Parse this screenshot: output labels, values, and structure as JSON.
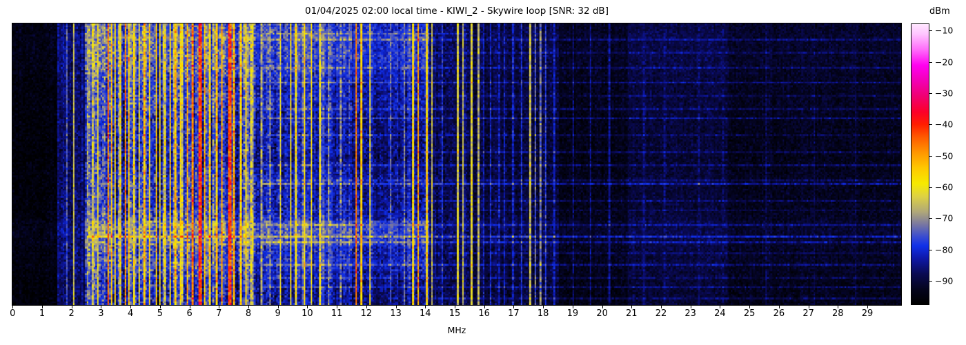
{
  "chart_data": {
    "type": "heatmap",
    "subtype": "hf-spectrogram-waterfall",
    "title": "01/04/2025 02:00 local time - KIWI_2 - Skywire loop [SNR: 32 dB]",
    "xlabel": "MHz",
    "xlim": [
      0,
      30.2
    ],
    "xticks": [
      0,
      1,
      2,
      3,
      4,
      5,
      6,
      7,
      8,
      9,
      10,
      11,
      12,
      13,
      14,
      15,
      16,
      17,
      18,
      19,
      20,
      21,
      22,
      23,
      24,
      25,
      26,
      27,
      28,
      29
    ],
    "ylabel": "",
    "time_axis": "vertical, unlabeled (24 h waterfall, newest at bottom)",
    "grid": false,
    "colorbar": {
      "label": "dBm",
      "ticks": [
        -10,
        -20,
        -30,
        -40,
        -50,
        -60,
        -70,
        -80,
        -90
      ],
      "vmin": -97.75,
      "vmax": -7.75,
      "position": "right",
      "colormap": [
        [
          -97.5,
          "#000000"
        ],
        [
          -93,
          "#04041c"
        ],
        [
          -88,
          "#0a0a52"
        ],
        [
          -83,
          "#0e18a8"
        ],
        [
          -79,
          "#1030e8"
        ],
        [
          -76,
          "#3a4cd0"
        ],
        [
          -72,
          "#7a78a0"
        ],
        [
          -68,
          "#b0a878"
        ],
        [
          -63,
          "#ded242"
        ],
        [
          -59,
          "#f6ea00"
        ],
        [
          -54,
          "#ffc800"
        ],
        [
          -49,
          "#ff9600"
        ],
        [
          -44,
          "#ff5a00"
        ],
        [
          -40,
          "#ff1e00"
        ],
        [
          -36,
          "#fc0028"
        ],
        [
          -31,
          "#f00070"
        ],
        [
          -26,
          "#f200b4"
        ],
        [
          -21,
          "#ff00f0"
        ],
        [
          -16,
          "#ff6cfa"
        ],
        [
          -11,
          "#ffc4ff"
        ],
        [
          -7.8,
          "#ffe6ff"
        ]
      ]
    },
    "grid_model": {
      "cols": 516,
      "rows": 150,
      "seed": 20250104
    },
    "noise_floor_segments": [
      [
        0.0,
        1.55,
        -95,
        2.5,
        1
      ],
      [
        1.55,
        2.45,
        -87,
        3.5,
        3
      ],
      [
        2.45,
        8.25,
        -76,
        6,
        10
      ],
      [
        8.25,
        9.35,
        -80,
        5,
        6
      ],
      [
        9.35,
        12.25,
        -80,
        4.5,
        5
      ],
      [
        12.25,
        13.4,
        -83,
        4,
        3
      ],
      [
        13.4,
        14.15,
        -80,
        4.5,
        5
      ],
      [
        14.15,
        15.5,
        -88,
        3.5,
        2
      ],
      [
        15.5,
        18.55,
        -90,
        3,
        2
      ],
      [
        18.55,
        20.9,
        -93,
        2.5,
        1
      ],
      [
        20.9,
        24.3,
        -90,
        2.5,
        1
      ],
      [
        24.3,
        30.2,
        -92.5,
        2.5,
        1
      ]
    ],
    "carriers_mhz_dbm": [
      [
        1.84,
        -73,
        1,
        4
      ],
      [
        2.07,
        -64,
        1,
        3
      ],
      [
        2.5,
        -66,
        1,
        5
      ],
      [
        2.72,
        -62,
        1,
        6
      ],
      [
        2.88,
        -58,
        1,
        5
      ],
      [
        3.2,
        -45,
        1,
        4
      ],
      [
        3.33,
        -52,
        1,
        5
      ],
      [
        3.48,
        -56,
        1,
        6
      ],
      [
        3.65,
        -57,
        1,
        6
      ],
      [
        3.8,
        -47,
        1,
        4
      ],
      [
        3.95,
        -52,
        1,
        5
      ],
      [
        4.1,
        -57,
        1,
        6
      ],
      [
        4.28,
        -60,
        1,
        6
      ],
      [
        4.47,
        -51,
        1,
        5
      ],
      [
        4.65,
        -55,
        1,
        6
      ],
      [
        4.85,
        -53,
        1,
        5
      ],
      [
        5.0,
        -57,
        1,
        6
      ],
      [
        5.15,
        -59,
        1,
        6
      ],
      [
        5.35,
        -54,
        1,
        5
      ],
      [
        5.5,
        -51,
        1,
        5
      ],
      [
        5.7,
        -55,
        1,
        6
      ],
      [
        5.9,
        -49,
        1,
        4
      ],
      [
        6.07,
        -45,
        1,
        4
      ],
      [
        6.3,
        -40,
        2,
        3
      ],
      [
        6.5,
        -51,
        1,
        5
      ],
      [
        6.7,
        -54,
        1,
        6
      ],
      [
        6.9,
        -51,
        1,
        5
      ],
      [
        7.1,
        -49,
        1,
        4
      ],
      [
        7.3,
        -41,
        2,
        3
      ],
      [
        7.5,
        -49,
        1,
        5
      ],
      [
        7.7,
        -53,
        1,
        6
      ],
      [
        7.9,
        -55,
        1,
        6
      ],
      [
        8.1,
        -61,
        1,
        6
      ],
      [
        8.4,
        -65,
        1,
        7
      ],
      [
        8.7,
        -67,
        1,
        7
      ],
      [
        9.05,
        -61,
        1,
        6
      ],
      [
        9.4,
        -59,
        1,
        6
      ],
      [
        9.6,
        -57,
        1,
        6
      ],
      [
        9.9,
        -55,
        1,
        5
      ],
      [
        10.1,
        -57,
        1,
        6
      ],
      [
        10.4,
        -59,
        1,
        7
      ],
      [
        10.7,
        -67,
        1,
        7
      ],
      [
        11.1,
        -69,
        1,
        7
      ],
      [
        11.65,
        -45,
        1,
        4
      ],
      [
        11.85,
        -53,
        1,
        5
      ],
      [
        12.1,
        -58,
        1,
        9
      ],
      [
        12.8,
        -71,
        1,
        7
      ],
      [
        13.3,
        -69,
        1,
        7
      ],
      [
        13.57,
        -55,
        1,
        5
      ],
      [
        13.78,
        -49,
        1,
        4
      ],
      [
        14.05,
        -55,
        1,
        5
      ],
      [
        14.2,
        -63,
        1,
        6
      ],
      [
        14.6,
        -77,
        1,
        6
      ],
      [
        15.12,
        -61,
        1,
        5
      ],
      [
        15.3,
        -63,
        1,
        6
      ],
      [
        15.55,
        -59,
        1,
        7
      ],
      [
        15.8,
        -63,
        1,
        9
      ],
      [
        15.95,
        -80,
        1,
        5
      ],
      [
        16.2,
        -79,
        1,
        5
      ],
      [
        16.5,
        -81,
        1,
        5
      ],
      [
        16.7,
        -80,
        1,
        5
      ],
      [
        16.95,
        -79,
        1,
        5
      ],
      [
        17.25,
        -77,
        1,
        5
      ],
      [
        17.55,
        -63,
        1,
        7
      ],
      [
        17.75,
        -71,
        1,
        7
      ],
      [
        17.9,
        -69,
        1,
        7
      ],
      [
        18.1,
        -75,
        1,
        6
      ],
      [
        18.35,
        -79,
        1,
        5
      ],
      [
        19.0,
        -85,
        1,
        4
      ],
      [
        19.6,
        -84,
        1,
        4
      ],
      [
        20.25,
        -83,
        1,
        4
      ],
      [
        21.45,
        -84,
        1,
        4
      ],
      [
        22.1,
        -85,
        1,
        4
      ],
      [
        23.3,
        -85,
        1,
        4
      ],
      [
        24.1,
        -86,
        1,
        4
      ],
      [
        25.6,
        -87,
        1,
        3
      ],
      [
        27.2,
        -88,
        1,
        3
      ],
      [
        28.6,
        -88,
        1,
        3
      ]
    ],
    "broadband_events_t_amp_fmin_fmax": [
      [
        0.03,
        6,
        8.5,
        15.5
      ],
      [
        0.055,
        5,
        8.5,
        30.2
      ],
      [
        0.1,
        4,
        14,
        30.2
      ],
      [
        0.155,
        5,
        8.5,
        30.2
      ],
      [
        0.205,
        7,
        8.5,
        30.2
      ],
      [
        0.25,
        4,
        14,
        30.2
      ],
      [
        0.3,
        5,
        8.5,
        30.2
      ],
      [
        0.335,
        8,
        8.5,
        30.2
      ],
      [
        0.395,
        4,
        8.5,
        30.2
      ],
      [
        0.45,
        5,
        14,
        30.2
      ],
      [
        0.5,
        6,
        8.5,
        30.2
      ],
      [
        0.55,
        5,
        8.5,
        30.2
      ],
      [
        0.57,
        9,
        8.5,
        30.2
      ],
      [
        0.625,
        5,
        14,
        30.2
      ],
      [
        0.66,
        4,
        8.5,
        30.2
      ],
      [
        0.715,
        6,
        8.5,
        30.2
      ],
      [
        0.755,
        10,
        2.5,
        30.2
      ],
      [
        0.775,
        7,
        8.5,
        30.2
      ],
      [
        0.81,
        4,
        14,
        30.2
      ],
      [
        0.85,
        6,
        8.5,
        30.2
      ],
      [
        0.9,
        4,
        8.5,
        30.2
      ],
      [
        0.935,
        7,
        8.5,
        30.2
      ],
      [
        0.975,
        5,
        14,
        30.2
      ]
    ],
    "hot_time_bands_t0_t1_amp": [
      [
        0.0,
        0.06,
        2
      ],
      [
        0.7,
        0.785,
        5
      ],
      [
        0.785,
        0.875,
        2.5
      ]
    ],
    "active_band_mhz": [
      2.45,
      14.15
    ]
  },
  "layout_colors": {
    "figure_background": "#ffffff",
    "axes_edge": "#000000",
    "text": "#000000"
  }
}
